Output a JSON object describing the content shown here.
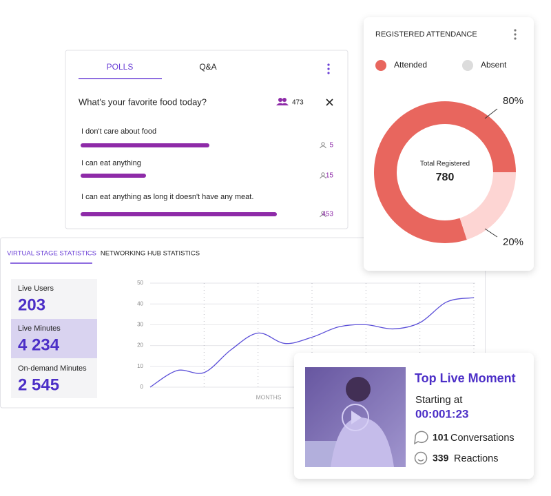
{
  "polls": {
    "tabs": [
      "POLLS",
      "Q&A"
    ],
    "question": "What's your favorite food today?",
    "total": 473,
    "options": [
      {
        "label": "I don't care about food",
        "count": 5
      },
      {
        "label": "I can eat anything",
        "count": 15
      },
      {
        "label": "I can eat anything as long it doesn't have any meat.",
        "count": 453
      }
    ]
  },
  "attendance": {
    "type": "pie",
    "title": "REGISTERED ATTENDANCE",
    "categories": [
      "Attended",
      "Absent"
    ],
    "values": [
      80,
      20
    ],
    "value_labels": [
      "80%",
      "20%"
    ],
    "colors": [
      "#e8665e",
      "#fdd5d3"
    ],
    "center_label": "Total Registered",
    "center_value": 780
  },
  "stats": {
    "tabs": [
      "VIRTUAL STAGE STATISTICS",
      "NETWORKING HUB STATISTICS"
    ],
    "kpis": [
      {
        "label": "Live Users",
        "value": "203"
      },
      {
        "label": "Live Minutes",
        "value": "4 234"
      },
      {
        "label": "On-demand Minutes",
        "value": "2 545"
      }
    ],
    "line_chart": {
      "type": "line",
      "xlabel": "MONTHS",
      "categories": [
        null,
        null,
        null,
        null,
        null,
        null,
        null,
        null,
        null,
        null,
        null,
        null,
        null
      ],
      "values": [
        0,
        8,
        7,
        18,
        26,
        21,
        24,
        29,
        30,
        28,
        31,
        41,
        43
      ],
      "ylim": [
        0,
        50
      ],
      "yticks": [
        0,
        10,
        20,
        30,
        40,
        50
      ],
      "color": "#5b4fd8",
      "grid": true
    }
  },
  "moment": {
    "title": "Top Live Moment",
    "starting_label": "Starting at",
    "time": "00:001:23",
    "conversations": 101,
    "conversations_label": "Conversations",
    "reactions": 339,
    "reactions_label": "Reactions"
  }
}
